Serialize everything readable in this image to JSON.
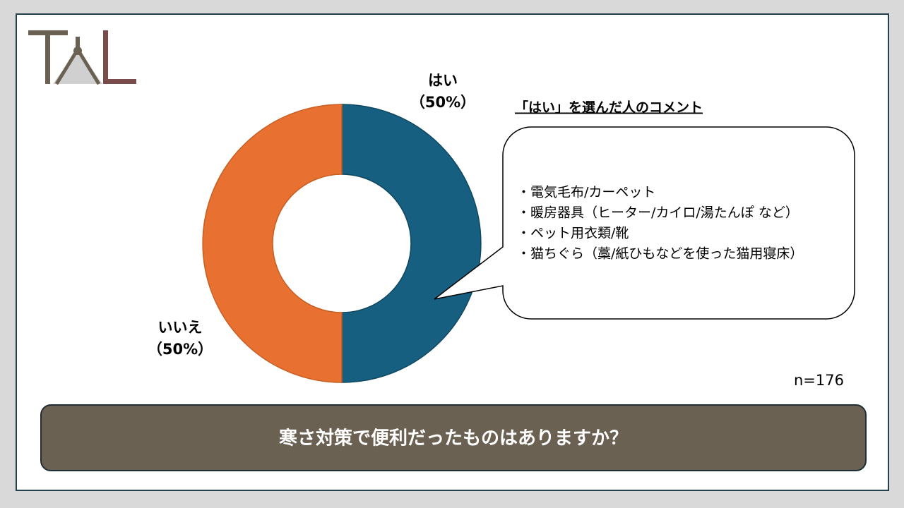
{
  "chart_data": {
    "type": "donut",
    "title": "寒さ対策で便利だったものはありますか？",
    "categories": [
      "はい",
      "いいえ"
    ],
    "values": [
      50,
      50
    ],
    "value_labels": [
      "（50%）",
      "（50%）"
    ],
    "colors": [
      "#165f80",
      "#e87131"
    ],
    "sample_label": "n=176",
    "comment_title": "「はい」を選んだ人のコメント",
    "comments": [
      "・電気毛布/カーペット",
      "・暖房器具（ヒーター/カイロ/湯たんぽ など）",
      "・ペット用衣類/靴",
      "・猫ちぐら（藁/紙ひもなどを使った猫用寝床）"
    ]
  }
}
